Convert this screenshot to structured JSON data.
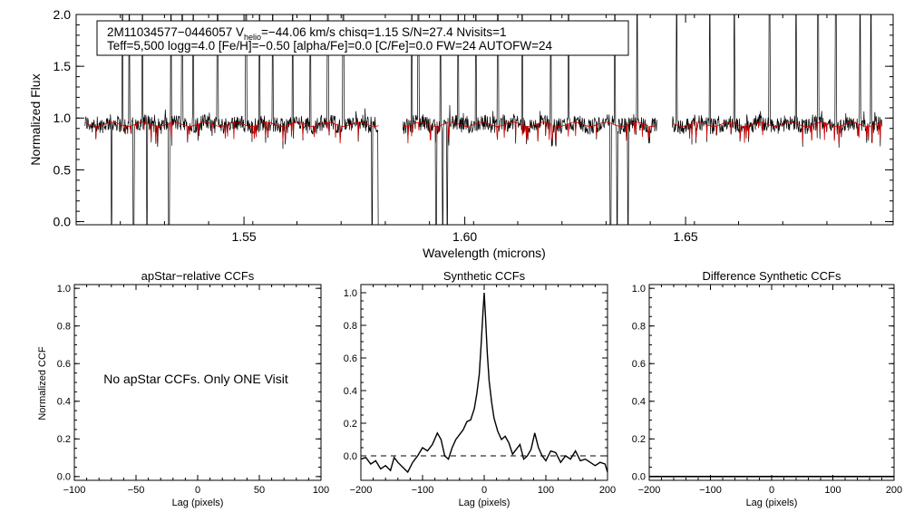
{
  "chart_data": [
    {
      "type": "line",
      "panel": "spectrum",
      "title": "",
      "xlabel": "Wavelength (microns)",
      "ylabel": "Normalized Flux",
      "xlim": [
        1.512,
        1.697
      ],
      "ylim": [
        -0.03,
        2.0
      ],
      "xticks": [
        1.55,
        1.6,
        1.65
      ],
      "xtick_labels": [
        "1.55",
        "1.60",
        "1.65"
      ],
      "yticks": [
        0.0,
        0.5,
        1.0,
        1.5,
        2.0
      ],
      "ytick_labels": [
        "0.0",
        "0.5",
        "1.0",
        "1.5",
        "2.0"
      ],
      "chips": [
        [
          1.514,
          1.5805
        ],
        [
          1.586,
          1.6435
        ],
        [
          1.647,
          1.6945
        ]
      ],
      "continuum": 0.94,
      "sky_lines": [
        1.5225,
        1.524,
        1.527,
        1.5335,
        1.536,
        1.5385,
        1.544,
        1.5505,
        1.5535,
        1.5565,
        1.561,
        1.565,
        1.569,
        1.5725,
        1.579,
        1.588,
        1.5895,
        1.5945,
        1.5985,
        1.6025,
        1.6075,
        1.613,
        1.6195,
        1.6235,
        1.634,
        1.639,
        1.648,
        1.6555,
        1.661,
        1.669,
        1.675,
        1.68,
        1.684,
        1.6895,
        1.692
      ],
      "absorption_dips": [
        1.52,
        1.525,
        1.528,
        1.533,
        1.579,
        1.5805,
        1.5935,
        1.595,
        1.596,
        1.633,
        1.6345,
        1.637
      ],
      "series": [
        {
          "name": "",
          "color": "#000000"
        },
        {
          "name": "",
          "color": "#cc0000"
        }
      ],
      "annotation": {
        "line1_prefix": "2M11034577−0446057  V",
        "line1_sub": "helio",
        "line1_suffix": "=−44.06 km/s  chisq=1.15  S/N=27.4  Nvisits=1",
        "line2": "Teff=5,500 logg=4.0 [Fe/H]=−0.50 [alpha/Fe]=0.0 [C/Fe]=0.0 FW=24 AUTOFW=24"
      }
    },
    {
      "type": "line",
      "panel": "apstar",
      "title": "apStar−relative CCFs",
      "xlabel": "Lag (pixels)",
      "ylabel": "Normalized CCF",
      "xlim": [
        -100,
        100
      ],
      "ylim": [
        -0.02,
        1.02
      ],
      "xticks": [
        -100,
        -50,
        0,
        50,
        100
      ],
      "xtick_labels": [
        "−100",
        "−50",
        "0",
        "50",
        "100"
      ],
      "yticks": [
        0.0,
        0.2,
        0.4,
        0.6,
        0.8,
        1.0
      ],
      "ytick_labels": [
        "0.0",
        "0.2",
        "0.4",
        "0.6",
        "0.8",
        "1.0"
      ],
      "message": "No apStar CCFs.  Only ONE Visit"
    },
    {
      "type": "line",
      "panel": "synthetic",
      "title": "Synthetic CCFs",
      "xlabel": "Lag (pixels)",
      "ylabel": "",
      "xlim": [
        -200,
        200
      ],
      "ylim": [
        -0.15,
        1.05
      ],
      "xticks": [
        -200,
        -100,
        0,
        100,
        200
      ],
      "xtick_labels": [
        "−200",
        "−100",
        "0",
        "100",
        "200"
      ],
      "yticks": [
        0.0,
        0.2,
        0.4,
        0.6,
        0.8,
        1.0
      ],
      "ytick_labels": [
        "0.0",
        "0.2",
        "0.4",
        "0.6",
        "0.8",
        "1.0"
      ],
      "zero_line": 0.0,
      "x": [
        -200,
        -192,
        -184,
        -176,
        -168,
        -160,
        -152,
        -146,
        -140,
        -132,
        -124,
        -116,
        -108,
        -100,
        -92,
        -84,
        -76,
        -70,
        -64,
        -58,
        -52,
        -46,
        -40,
        -34,
        -28,
        -22,
        -16,
        -12,
        -8,
        -5,
        -2,
        0,
        2,
        5,
        8,
        12,
        16,
        22,
        28,
        34,
        40,
        46,
        52,
        58,
        64,
        70,
        76,
        82,
        88,
        94,
        100,
        108,
        116,
        124,
        132,
        140,
        148,
        156,
        164,
        172,
        180,
        188,
        196,
        200
      ],
      "y": [
        -0.02,
        -0.01,
        -0.05,
        -0.03,
        -0.08,
        -0.06,
        -0.09,
        -0.01,
        -0.04,
        -0.07,
        -0.1,
        -0.04,
        0.0,
        0.05,
        0.03,
        0.07,
        0.14,
        0.1,
        0.0,
        -0.02,
        0.05,
        0.1,
        0.13,
        0.16,
        0.21,
        0.22,
        0.29,
        0.38,
        0.5,
        0.68,
        0.88,
        1.0,
        0.86,
        0.63,
        0.46,
        0.33,
        0.23,
        0.15,
        0.1,
        0.12,
        0.08,
        0.01,
        0.04,
        0.07,
        -0.02,
        0.0,
        0.04,
        0.14,
        0.05,
        0.0,
        -0.03,
        0.03,
        0.02,
        -0.04,
        0.0,
        -0.02,
        0.03,
        -0.03,
        -0.02,
        -0.04,
        -0.06,
        -0.04,
        -0.05,
        -0.1
      ]
    },
    {
      "type": "line",
      "panel": "difference",
      "title": "Difference Synthetic CCFs",
      "xlabel": "Lag (pixels)",
      "ylabel": "",
      "xlim": [
        -200,
        200
      ],
      "ylim": [
        -0.02,
        1.02
      ],
      "xticks": [
        -200,
        -100,
        0,
        100,
        200
      ],
      "xtick_labels": [
        "−200",
        "−100",
        "0",
        "100",
        "200"
      ],
      "yticks": [
        0.0,
        0.2,
        0.4,
        0.6,
        0.8,
        1.0
      ],
      "ytick_labels": [
        "0.0",
        "0.2",
        "0.4",
        "0.6",
        "0.8",
        "1.0"
      ]
    }
  ]
}
